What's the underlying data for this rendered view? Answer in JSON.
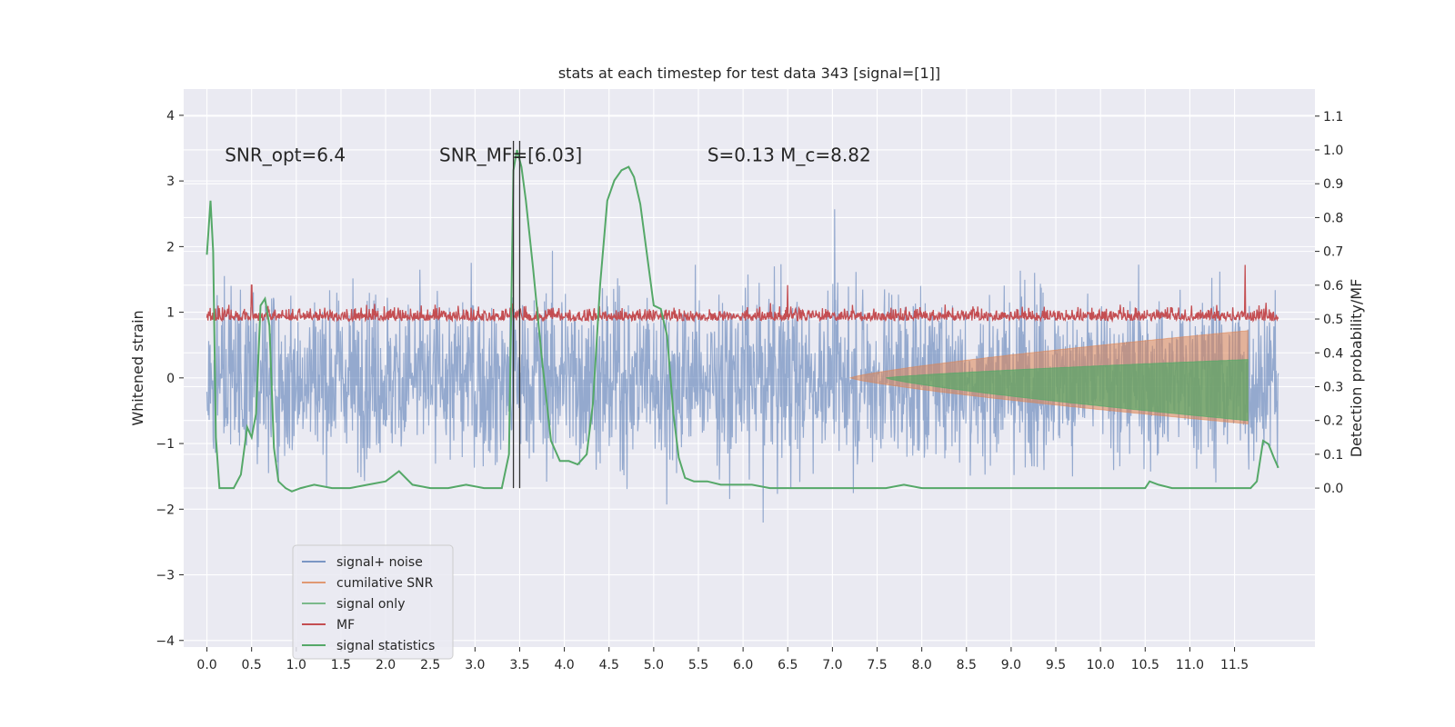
{
  "chart_data": {
    "type": "line",
    "title": "stats at each timestep for test data 343 [signal=[1]]",
    "ylabel": "Whitened strain",
    "ylabel_right": "Detection probability/MF",
    "xlim": [
      -0.26,
      12.4
    ],
    "ylim": [
      -4.1,
      4.4
    ],
    "ylim_right": [
      -0.47,
      1.18
    ],
    "x_ticks": [
      0.0,
      0.5,
      1.0,
      1.5,
      2.0,
      2.5,
      3.0,
      3.5,
      4.0,
      4.5,
      5.0,
      5.5,
      6.0,
      6.5,
      7.0,
      7.5,
      8.0,
      8.5,
      9.0,
      9.5,
      10.0,
      10.5,
      11.0,
      11.5
    ],
    "x_tick_labels": [
      "0.0",
      "0.5",
      "1.0",
      "1.5",
      "2.0",
      "2.5",
      "3.0",
      "3.5",
      "4.0",
      "4.5",
      "5.0",
      "5.5",
      "6.0",
      "6.5",
      "7.0",
      "7.5",
      "8.0",
      "8.5",
      "9.0",
      "9.5",
      "10.0",
      "10.5",
      "11.0",
      "11.5"
    ],
    "y_ticks": [
      -4,
      -3,
      -2,
      -1,
      0,
      1,
      2,
      3,
      4
    ],
    "y_tick_labels": [
      "−4",
      "−3",
      "−2",
      "−1",
      "0",
      "1",
      "2",
      "3",
      "4"
    ],
    "y_ticks_right": [
      0.0,
      0.1,
      0.2,
      0.3,
      0.4,
      0.5,
      0.6,
      0.7,
      0.8,
      0.9,
      1.0,
      1.1
    ],
    "y_tick_labels_right": [
      "0.0",
      "0.1",
      "0.2",
      "0.3",
      "0.4",
      "0.5",
      "0.6",
      "0.7",
      "0.8",
      "0.9",
      "1.0",
      "1.1"
    ],
    "grid": true,
    "legend_position": "lower-left",
    "annotations": [
      {
        "text": "SNR_opt=6.4",
        "x": 0.2,
        "y": 3.3
      },
      {
        "text": "SNR_MF=[6.03]",
        "x": 2.6,
        "y": 3.3
      },
      {
        "text": "S=0.13   M_c=8.82",
        "x": 5.6,
        "y": 3.3
      }
    ],
    "vlines": [
      3.43,
      3.5
    ],
    "colors": {
      "signal_noise": "#4c72b0",
      "cumulative_snr": "#dd8452",
      "signal_only": "#55a868",
      "mf": "#c44e52",
      "signal_statistics": "#55a868",
      "vline": "#333333",
      "background": "#eaeaf2",
      "grid": "#ffffff"
    },
    "series": [
      {
        "name": "signal+ noise",
        "key": "signal_noise",
        "axis": "left",
        "style": "dense-noise",
        "x_range": [
          0.0,
          11.99
        ],
        "sigma": 1.0
      },
      {
        "name": "cumilative SNR",
        "key": "cumulative_snr",
        "axis": "left",
        "style": "envelope",
        "x_start": 7.2,
        "x_end": 11.65,
        "upper_end": 0.72,
        "lower_end": -0.7
      },
      {
        "name": "signal only",
        "key": "signal_only",
        "axis": "left",
        "style": "envelope",
        "x_start": 7.6,
        "x_end": 11.65,
        "upper_end": 0.28,
        "lower_end": -0.65
      },
      {
        "name": "MF",
        "key": "mf",
        "axis": "right",
        "style": "dense-noise",
        "x_range": [
          0.0,
          11.99
        ],
        "base": 0.5,
        "spread": 0.05,
        "spikes": [
          {
            "x": 0.5,
            "y": 0.6
          },
          {
            "x": 6.5,
            "y": 0.6
          },
          {
            "x": 11.62,
            "y": 0.66
          }
        ]
      },
      {
        "name": "signal statistics",
        "key": "signal_statistics",
        "axis": "right",
        "x": [
          0.0,
          0.04,
          0.07,
          0.1,
          0.14,
          0.18,
          0.22,
          0.3,
          0.38,
          0.45,
          0.5,
          0.55,
          0.6,
          0.65,
          0.7,
          0.75,
          0.8,
          0.88,
          0.95,
          1.05,
          1.2,
          1.4,
          1.6,
          1.8,
          2.0,
          2.15,
          2.3,
          2.5,
          2.7,
          2.9,
          3.1,
          3.3,
          3.38,
          3.43,
          3.47,
          3.52,
          3.57,
          3.65,
          3.75,
          3.85,
          3.95,
          4.05,
          4.15,
          4.25,
          4.32,
          4.4,
          4.48,
          4.56,
          4.64,
          4.72,
          4.78,
          4.85,
          4.92,
          5.0,
          5.08,
          5.15,
          5.22,
          5.28,
          5.35,
          5.45,
          5.6,
          5.75,
          5.9,
          6.1,
          6.3,
          6.5,
          6.7,
          7.0,
          7.3,
          7.6,
          7.8,
          8.0,
          8.2,
          8.5,
          9.0,
          9.5,
          10.0,
          10.3,
          10.5,
          10.55,
          10.65,
          10.8,
          11.0,
          11.3,
          11.6,
          11.68,
          11.75,
          11.82,
          11.88,
          11.94,
          11.99
        ],
        "y": [
          0.69,
          0.85,
          0.7,
          0.15,
          0.0,
          0.0,
          0.0,
          0.0,
          0.04,
          0.18,
          0.15,
          0.22,
          0.54,
          0.56,
          0.48,
          0.12,
          0.02,
          0.0,
          -0.01,
          0.0,
          0.01,
          0.0,
          0.0,
          0.01,
          0.02,
          0.05,
          0.01,
          0.0,
          0.0,
          0.01,
          0.0,
          0.0,
          0.1,
          0.94,
          1.0,
          0.95,
          0.85,
          0.65,
          0.38,
          0.14,
          0.08,
          0.08,
          0.07,
          0.1,
          0.25,
          0.6,
          0.85,
          0.91,
          0.94,
          0.95,
          0.92,
          0.84,
          0.7,
          0.54,
          0.53,
          0.45,
          0.22,
          0.09,
          0.03,
          0.02,
          0.02,
          0.01,
          0.01,
          0.01,
          0.0,
          0.0,
          0.0,
          0.0,
          0.0,
          0.0,
          0.01,
          0.0,
          0.0,
          0.0,
          0.0,
          0.0,
          0.0,
          0.0,
          0.0,
          0.02,
          0.01,
          0.0,
          0.0,
          0.0,
          0.0,
          0.0,
          0.02,
          0.14,
          0.13,
          0.09,
          0.06
        ]
      }
    ]
  }
}
